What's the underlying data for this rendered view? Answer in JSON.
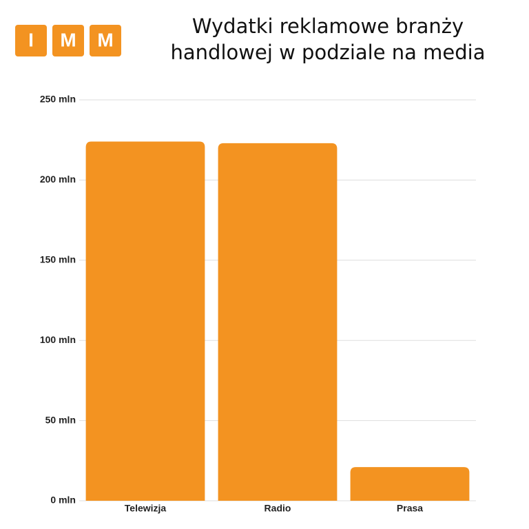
{
  "chart_data": {
    "type": "bar",
    "logo": [
      "I",
      "M",
      "M"
    ],
    "title": [
      "Wydatki reklamowe branży",
      "handlowej w podziale na media"
    ],
    "categories": [
      "Telewizja",
      "Radio",
      "Prasa"
    ],
    "values": [
      224,
      223,
      21
    ],
    "color": "#f39321",
    "ylim": [
      0,
      250
    ],
    "yticks": [
      {
        "value": 0,
        "label": "0 mln"
      },
      {
        "value": 50,
        "label": "50 mln"
      },
      {
        "value": 100,
        "label": "100 mln"
      },
      {
        "value": 150,
        "label": "150 mln"
      },
      {
        "value": 200,
        "label": "200 mln"
      },
      {
        "value": 250,
        "label": "250 mln"
      }
    ],
    "grid": true
  }
}
